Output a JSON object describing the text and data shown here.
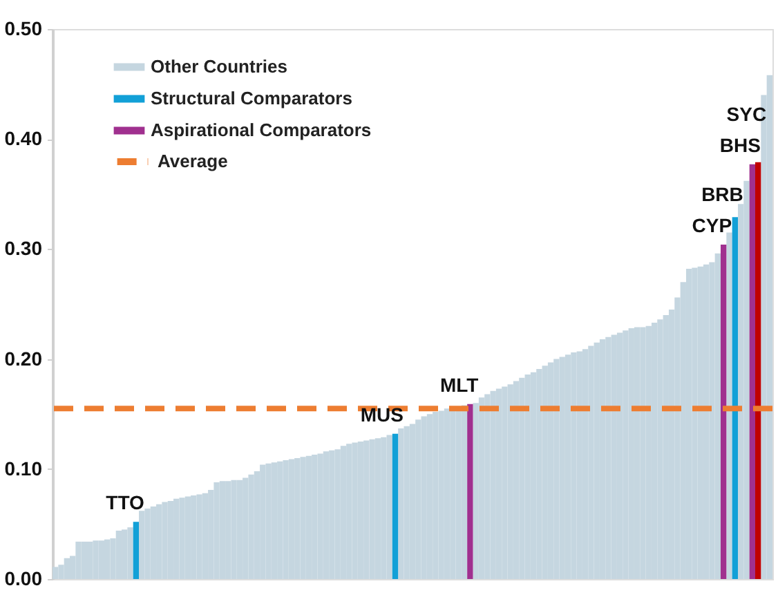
{
  "chart_data": {
    "type": "bar",
    "categories": [
      null,
      null,
      null,
      null,
      null,
      null,
      null,
      null,
      null,
      null,
      null,
      null,
      null,
      null,
      null,
      null,
      null,
      null,
      null,
      null,
      null,
      null,
      null,
      null,
      null,
      null,
      null,
      null,
      null,
      null,
      null,
      null,
      null,
      null,
      null,
      null,
      null,
      null,
      null,
      null,
      null,
      null,
      null,
      null,
      null,
      null,
      null,
      null,
      null,
      null,
      null,
      null,
      null,
      null,
      null,
      null,
      null,
      null,
      null,
      null,
      null,
      null,
      null,
      null,
      null,
      null,
      null,
      null,
      null,
      null,
      null,
      null,
      null,
      null,
      null,
      null,
      null,
      null,
      null,
      null,
      null,
      null,
      null,
      null,
      null,
      null,
      null,
      null,
      null,
      null,
      null,
      null,
      null,
      null,
      null,
      null,
      null,
      null,
      null,
      null,
      null,
      null,
      null,
      null,
      null,
      null,
      null,
      null,
      null,
      null,
      null,
      null,
      null,
      null,
      null,
      null,
      null,
      null,
      null,
      null,
      null,
      null,
      null,
      null,
      null
    ],
    "series": [
      {
        "name": "Other Countries",
        "color": "#c5d6e0",
        "values": [
          0.011,
          0.013,
          0.019,
          0.021,
          0.034,
          0.034,
          0.034,
          0.035,
          0.035,
          0.036,
          0.037,
          0.044,
          0.045,
          0.047,
          null,
          0.062,
          0.064,
          0.066,
          0.068,
          0.07,
          0.071,
          0.073,
          0.074,
          0.075,
          0.076,
          0.077,
          0.078,
          0.081,
          0.088,
          0.089,
          0.089,
          0.09,
          0.09,
          0.092,
          0.095,
          0.098,
          0.104,
          0.105,
          0.106,
          0.107,
          0.108,
          0.109,
          0.11,
          0.111,
          0.112,
          0.113,
          0.114,
          0.116,
          0.117,
          0.118,
          0.121,
          0.123,
          0.124,
          0.125,
          0.126,
          0.127,
          0.128,
          0.129,
          0.131,
          null,
          0.137,
          0.139,
          0.141,
          0.145,
          0.148,
          0.15,
          0.152,
          0.153,
          0.155,
          0.157,
          0.157,
          0.158,
          null,
          0.16,
          0.165,
          0.168,
          0.171,
          0.173,
          0.175,
          0.177,
          0.18,
          0.183,
          0.186,
          0.188,
          0.191,
          0.194,
          0.197,
          0.2,
          0.202,
          0.204,
          0.206,
          0.207,
          0.209,
          0.212,
          0.215,
          0.218,
          0.22,
          0.222,
          0.224,
          0.226,
          0.228,
          0.229,
          0.229,
          0.23,
          0.233,
          0.236,
          0.24,
          0.245,
          0.256,
          0.27,
          0.282,
          0.283,
          0.284,
          0.286,
          0.288,
          0.296,
          null,
          0.315,
          null,
          0.341,
          0.362,
          null,
          null,
          0.44,
          0.458
        ]
      },
      {
        "name": "Structural Comparators",
        "color": "#12a0d7",
        "values": [
          null,
          null,
          null,
          null,
          null,
          null,
          null,
          null,
          null,
          null,
          null,
          null,
          null,
          null,
          0.052,
          null,
          null,
          null,
          null,
          null,
          null,
          null,
          null,
          null,
          null,
          null,
          null,
          null,
          null,
          null,
          null,
          null,
          null,
          null,
          null,
          null,
          null,
          null,
          null,
          null,
          null,
          null,
          null,
          null,
          null,
          null,
          null,
          null,
          null,
          null,
          null,
          null,
          null,
          null,
          null,
          null,
          null,
          null,
          null,
          0.132,
          null,
          null,
          null,
          null,
          null,
          null,
          null,
          null,
          null,
          null,
          null,
          null,
          null,
          null,
          null,
          null,
          null,
          null,
          null,
          null,
          null,
          null,
          null,
          null,
          null,
          null,
          null,
          null,
          null,
          null,
          null,
          null,
          null,
          null,
          null,
          null,
          null,
          null,
          null,
          null,
          null,
          null,
          null,
          null,
          null,
          null,
          null,
          null,
          null,
          null,
          null,
          null,
          null,
          null,
          null,
          null,
          null,
          null,
          0.329,
          null,
          null,
          null,
          null,
          null,
          null
        ]
      },
      {
        "name": "Aspirational Comparators",
        "color": "#a0308f",
        "values": [
          null,
          null,
          null,
          null,
          null,
          null,
          null,
          null,
          null,
          null,
          null,
          null,
          null,
          null,
          null,
          null,
          null,
          null,
          null,
          null,
          null,
          null,
          null,
          null,
          null,
          null,
          null,
          null,
          null,
          null,
          null,
          null,
          null,
          null,
          null,
          null,
          null,
          null,
          null,
          null,
          null,
          null,
          null,
          null,
          null,
          null,
          null,
          null,
          null,
          null,
          null,
          null,
          null,
          null,
          null,
          null,
          null,
          null,
          null,
          null,
          null,
          null,
          null,
          null,
          null,
          null,
          null,
          null,
          null,
          null,
          null,
          null,
          0.159,
          null,
          null,
          null,
          null,
          null,
          null,
          null,
          null,
          null,
          null,
          null,
          null,
          null,
          null,
          null,
          null,
          null,
          null,
          null,
          null,
          null,
          null,
          null,
          null,
          null,
          null,
          null,
          null,
          null,
          null,
          null,
          null,
          null,
          null,
          null,
          null,
          null,
          null,
          null,
          null,
          null,
          null,
          null,
          0.304,
          null,
          null,
          null,
          null,
          0.377,
          null,
          null,
          null
        ]
      },
      {
        "color": "#c00000",
        "values": [
          null,
          null,
          null,
          null,
          null,
          null,
          null,
          null,
          null,
          null,
          null,
          null,
          null,
          null,
          null,
          null,
          null,
          null,
          null,
          null,
          null,
          null,
          null,
          null,
          null,
          null,
          null,
          null,
          null,
          null,
          null,
          null,
          null,
          null,
          null,
          null,
          null,
          null,
          null,
          null,
          null,
          null,
          null,
          null,
          null,
          null,
          null,
          null,
          null,
          null,
          null,
          null,
          null,
          null,
          null,
          null,
          null,
          null,
          null,
          null,
          null,
          null,
          null,
          null,
          null,
          null,
          null,
          null,
          null,
          null,
          null,
          null,
          null,
          null,
          null,
          null,
          null,
          null,
          null,
          null,
          null,
          null,
          null,
          null,
          null,
          null,
          null,
          null,
          null,
          null,
          null,
          null,
          null,
          null,
          null,
          null,
          null,
          null,
          null,
          null,
          null,
          null,
          null,
          null,
          null,
          null,
          null,
          null,
          null,
          null,
          null,
          null,
          null,
          null,
          null,
          null,
          null,
          null,
          null,
          null,
          null,
          null,
          0.379,
          null,
          null
        ]
      }
    ],
    "ylim": [
      0,
      0.5
    ],
    "yticks": [
      {
        "value": 0,
        "label": "0.00"
      },
      {
        "value": 0.1,
        "label": "0.10"
      },
      {
        "value": 0.2,
        "label": "0.20"
      },
      {
        "value": 0.3,
        "label": "0.30"
      },
      {
        "value": 0.4,
        "label": "0.40"
      },
      {
        "value": 0.5,
        "label": "0.50"
      }
    ],
    "ref_lines": [
      {
        "axis": "y",
        "value": 0.155,
        "label": "Average",
        "color": "#ed7d31",
        "line_style": "dashed"
      }
    ],
    "annotations": [
      "TTO",
      "MUS",
      "MLT",
      "CYP",
      "BRB",
      "BHS",
      "SYC"
    ],
    "legend": "top left",
    "grid": false,
    "tick_labels": "y"
  }
}
